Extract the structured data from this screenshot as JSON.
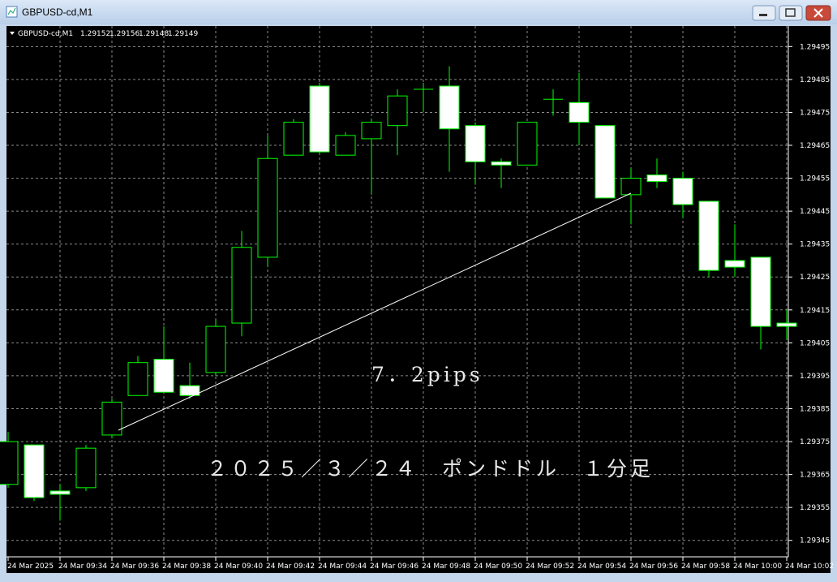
{
  "window": {
    "title": "GBPUSD-cd,M1"
  },
  "chart_data": {
    "type": "candlestick",
    "symbol": "GBPUSD-cd,M1",
    "header_values": [
      1.29152,
      1.29156,
      1.29148,
      1.29149
    ],
    "annotations": [
      "7．2pips",
      "２０２５／３／２４　ポンドドル　１分足"
    ],
    "categories": [
      "24 Mar 2025",
      null,
      "24 Mar 09:34",
      null,
      "24 Mar 09:36",
      null,
      "24 Mar 09:38",
      null,
      "24 Mar 09:40",
      null,
      "24 Mar 09:42",
      null,
      "24 Mar 09:44",
      null,
      "24 Mar 09:46",
      null,
      "24 Mar 09:48",
      null,
      "24 Mar 09:50",
      null,
      "24 Mar 09:52",
      null,
      "24 Mar 09:54",
      null,
      "24 Mar 09:56",
      null,
      "24 Mar 09:58",
      null,
      "24 Mar 10:00",
      null,
      "24 Mar 10:02"
    ],
    "open": [
      1.29362,
      1.29374,
      1.2936,
      1.29361,
      1.29377,
      1.29389,
      1.294,
      1.29392,
      1.29396,
      1.29411,
      1.29431,
      1.29462,
      1.29483,
      1.29462,
      1.29467,
      1.29471,
      1.29482,
      1.29483,
      1.29471,
      1.2946,
      1.29459,
      1.29479,
      1.29478,
      1.29471,
      1.2945,
      1.29456,
      1.29455,
      1.29448,
      1.2943,
      1.29431,
      1.29411
    ],
    "high": [
      1.29378,
      1.29374,
      1.29362,
      1.29374,
      1.29388,
      1.29401,
      1.2941,
      1.29399,
      1.29412,
      1.29439,
      1.29468,
      1.29473,
      1.29484,
      1.29469,
      1.29473,
      1.29482,
      1.29484,
      1.29489,
      1.29472,
      1.29461,
      1.29472,
      1.29482,
      1.29487,
      1.29471,
      1.29458,
      1.29461,
      1.29457,
      1.29448,
      1.29441,
      1.29431,
      1.29415
    ],
    "low": [
      1.29361,
      1.29357,
      1.29351,
      1.2936,
      1.29376,
      1.29389,
      1.2939,
      1.29388,
      1.29395,
      1.29407,
      1.29428,
      1.29462,
      1.29462,
      1.29462,
      1.2945,
      1.29462,
      1.29475,
      1.29457,
      1.29453,
      1.29452,
      1.29459,
      1.29474,
      1.29465,
      1.29449,
      1.29441,
      1.29452,
      1.29443,
      1.29425,
      1.29425,
      1.29403,
      1.29406
    ],
    "close": [
      1.29375,
      1.29358,
      1.29359,
      1.29373,
      1.29387,
      1.29399,
      1.2939,
      1.29389,
      1.2941,
      1.29434,
      1.29461,
      1.29472,
      1.29463,
      1.29468,
      1.29472,
      1.2948,
      1.29482,
      1.2947,
      1.2946,
      1.29459,
      1.29472,
      1.29479,
      1.29472,
      1.29449,
      1.29455,
      1.29454,
      1.29447,
      1.29427,
      1.29428,
      1.2941,
      1.2941
    ],
    "ylim": [
      1.2934,
      1.29501
    ],
    "yticks": [
      1.29495,
      1.29485,
      1.29475,
      1.29465,
      1.29455,
      1.29445,
      1.29435,
      1.29425,
      1.29415,
      1.29405,
      1.29395,
      1.29385,
      1.29375,
      1.29365,
      1.29355,
      1.29345
    ],
    "grid": true,
    "background": "#000000",
    "wick_color": "#00ff00",
    "bull_color": "#000000",
    "bear_color": "#ffffff"
  }
}
